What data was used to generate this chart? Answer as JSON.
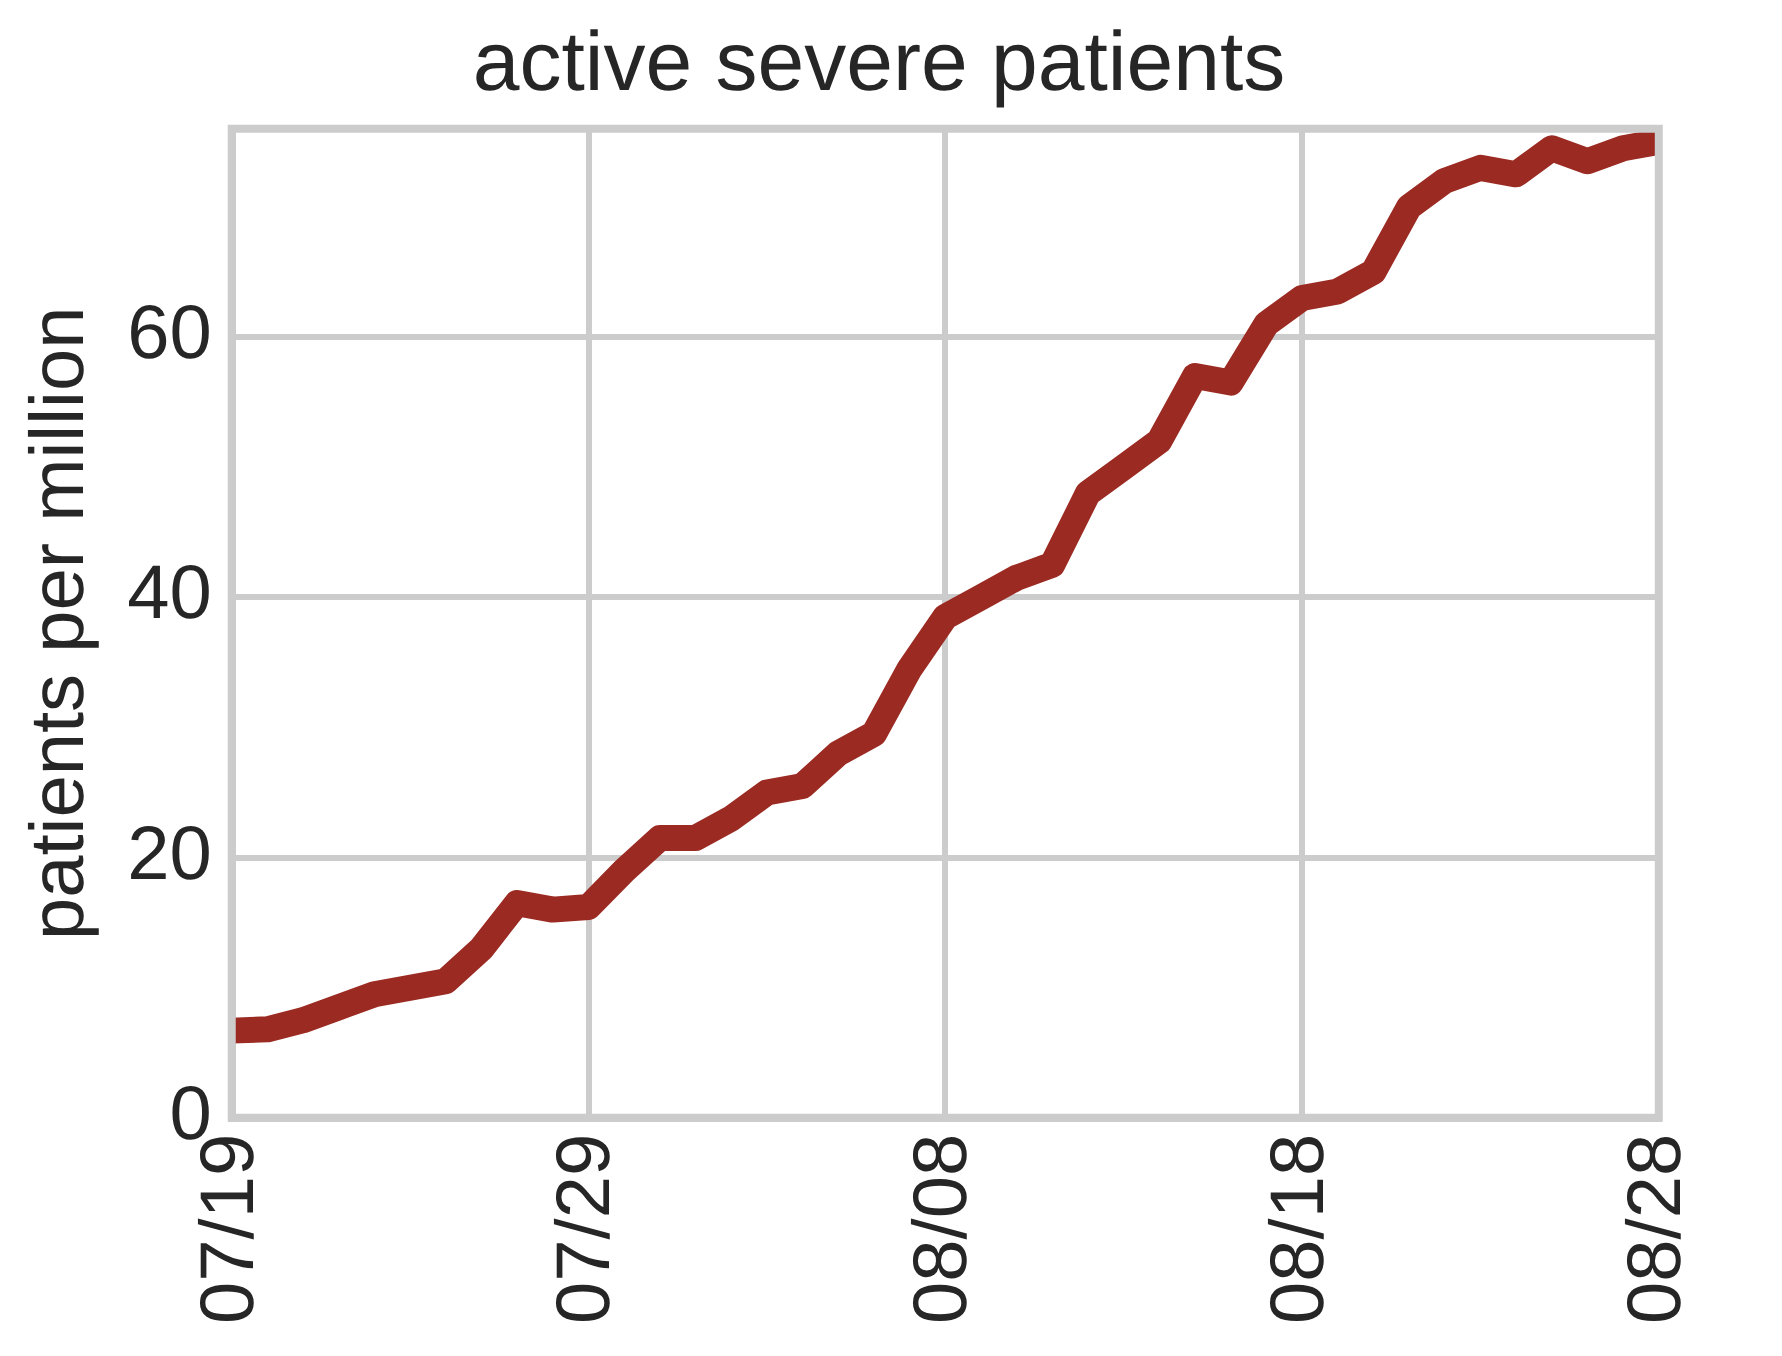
{
  "chart_data": {
    "type": "line",
    "title": "active severe patients",
    "ylabel": "patients per million",
    "x": [
      "--07-19",
      "--07-20",
      "--07-21",
      "--07-22",
      "--07-23",
      "--07-24",
      "--07-25",
      "--07-26",
      "--07-27",
      "--07-28",
      "--07-29",
      "--07-30",
      "--07-31",
      "--08-01",
      "--08-02",
      "--08-03",
      "--08-04",
      "--08-05",
      "--08-06",
      "--08-07",
      "--08-08",
      "--08-09",
      "--08-10",
      "--08-11",
      "--08-12",
      "--08-13",
      "--08-14",
      "--08-15",
      "--08-16",
      "--08-17",
      "--08-18",
      "--08-19",
      "--08-20",
      "--08-21",
      "--08-22",
      "--08-23",
      "--08-24",
      "--08-25",
      "--08-26",
      "--08-27",
      "--08-28"
    ],
    "series": [
      {
        "color": "#9b2a22",
        "values": [
          6.7,
          6.8,
          7.5,
          8.5,
          9.5,
          10,
          10.5,
          13,
          16.5,
          16,
          16.2,
          19,
          21.5,
          21.5,
          23,
          25,
          25.5,
          28,
          29.5,
          34.5,
          38.5,
          40,
          41.5,
          42.5,
          48,
          50,
          52,
          57,
          56.5,
          61,
          63,
          63.5,
          65,
          70,
          72,
          73,
          72.5,
          74.5,
          73.5,
          74.5,
          75
        ]
      }
    ],
    "xlim": [
      "--07-19",
      "--08-28"
    ],
    "ylim": [
      0,
      76
    ],
    "xticks": [
      {
        "value": "--07-19",
        "label": "07/19"
      },
      {
        "value": "--07-29",
        "label": "07/29"
      },
      {
        "value": "--08-08",
        "label": "08/08"
      },
      {
        "value": "--08-18",
        "label": "08/18"
      },
      {
        "value": "--08-28",
        "label": "08/28"
      }
    ],
    "yticks": [
      0,
      20,
      40,
      60
    ],
    "grid": true,
    "legend": false,
    "marker": "none",
    "line_style": "solid"
  }
}
